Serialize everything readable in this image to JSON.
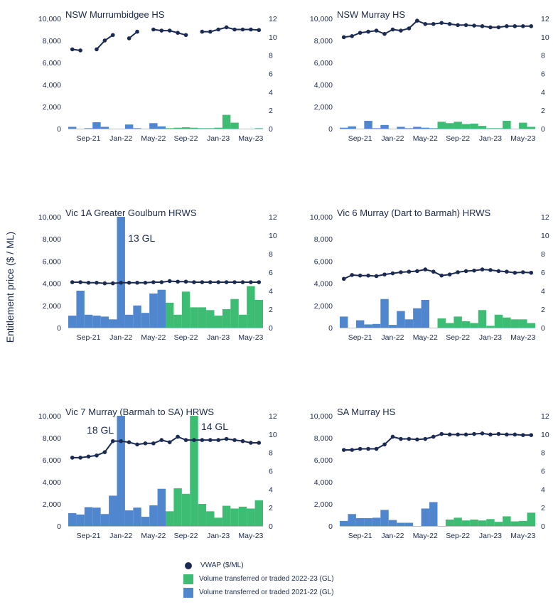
{
  "axis_label": "Entitlement price ($ / ML)",
  "colors": {
    "vwap": "#1a2a52",
    "vol_2223": "#3dbc73",
    "vol_2122": "#4f86cd",
    "axis": "#1b2a4a"
  },
  "legend": {
    "vwap": "VWAP ($/ML)",
    "vol_2223": "Volume transferred or traded 2022-23 (GL)",
    "vol_2122": "Volume transferred or traded 2021-22 (GL)"
  },
  "chart_data": [
    {
      "type": "bar+line",
      "title": "NSW Murrumbidgee HS",
      "months": [
        "Jul-21",
        "Aug-21",
        "Sep-21",
        "Oct-21",
        "Nov-21",
        "Dec-21",
        "Jan-22",
        "Feb-22",
        "Mar-22",
        "Apr-22",
        "May-22",
        "Jun-22",
        "Jul-22",
        "Aug-22",
        "Sep-22",
        "Oct-22",
        "Nov-22",
        "Dec-22",
        "Jan-23",
        "Feb-23",
        "Mar-23",
        "Apr-23",
        "May-23",
        "Jun-23"
      ],
      "x_ticks": [
        "Sep-21",
        "Jan-22",
        "May-22",
        "Sep-22",
        "Jan-23",
        "May-23"
      ],
      "y_left": {
        "lim": [
          0,
          10000
        ],
        "ticks": [
          "0",
          "2,000",
          "4,000",
          "6,000",
          "8,000",
          "10,000"
        ]
      },
      "y_right": {
        "lim": [
          0,
          12
        ],
        "ticks": [
          "0",
          "2",
          "4",
          "6",
          "8",
          "10",
          "12"
        ]
      },
      "vwap": [
        7200,
        7100,
        null,
        7200,
        8000,
        8500,
        null,
        8200,
        8800,
        null,
        9000,
        8900,
        8900,
        8700,
        8500,
        null,
        8800,
        8800,
        9000,
        9200,
        9000,
        9000,
        9000,
        8950
      ],
      "volume_2021_22": [
        0.2,
        0.0,
        0.05,
        0.7,
        0.2,
        0.0,
        0.0,
        0.45,
        0.05,
        0.0,
        0.6,
        0.25
      ],
      "volume_2022_23": [
        0.05,
        0.1,
        0.15,
        0.1,
        0.05,
        0.05,
        0.1,
        1.5,
        0.65,
        0.0,
        0.0,
        0.05
      ],
      "annotations": []
    },
    {
      "type": "bar+line",
      "title": "NSW Murray HS",
      "months": [
        "Jul-21",
        "Aug-21",
        "Sep-21",
        "Oct-21",
        "Nov-21",
        "Dec-21",
        "Jan-22",
        "Feb-22",
        "Mar-22",
        "Apr-22",
        "May-22",
        "Jun-22",
        "Jul-22",
        "Aug-22",
        "Sep-22",
        "Oct-22",
        "Nov-22",
        "Dec-22",
        "Jan-23",
        "Feb-23",
        "Mar-23",
        "Apr-23",
        "May-23",
        "Jun-23"
      ],
      "x_ticks": [
        "Sep-21",
        "Jan-22",
        "May-22",
        "Sep-22",
        "Jan-23",
        "May-23"
      ],
      "y_left": {
        "lim": [
          0,
          10000
        ],
        "ticks": [
          "0",
          "2,000",
          "4,000",
          "6,000",
          "8,000",
          "10,000"
        ]
      },
      "y_right": {
        "lim": [
          0,
          12
        ],
        "ticks": [
          "0",
          "2",
          "4",
          "6",
          "8",
          "10",
          "12"
        ]
      },
      "vwap": [
        8300,
        8400,
        8700,
        8800,
        8900,
        8600,
        9000,
        8900,
        9100,
        9800,
        9500,
        9500,
        9600,
        9500,
        9400,
        9400,
        9350,
        9300,
        9200,
        9200,
        9300,
        9300,
        9300,
        9300
      ],
      "volume_2021_22": [
        0.1,
        0.25,
        0.0,
        0.85,
        0.05,
        0.4,
        0.0,
        0.2,
        0.05,
        0.2,
        0.1,
        0.05
      ],
      "volume_2022_23": [
        0.75,
        0.6,
        0.75,
        0.5,
        0.55,
        0.3,
        0.05,
        0.05,
        0.85,
        0.0,
        0.65,
        0.2
      ],
      "annotations": []
    },
    {
      "type": "bar+line",
      "title": "Vic 1A Greater Goulburn HRWS",
      "months": [
        "Jul-21",
        "Aug-21",
        "Sep-21",
        "Oct-21",
        "Nov-21",
        "Dec-21",
        "Jan-22",
        "Feb-22",
        "Mar-22",
        "Apr-22",
        "May-22",
        "Jun-22",
        "Jul-22",
        "Aug-22",
        "Sep-22",
        "Oct-22",
        "Nov-22",
        "Dec-22",
        "Jan-23",
        "Feb-23",
        "Mar-23",
        "Apr-23",
        "May-23",
        "Jun-23"
      ],
      "x_ticks": [
        "Sep-21",
        "Jan-22",
        "May-22",
        "Sep-22",
        "Jan-23",
        "May-23"
      ],
      "y_left": {
        "lim": [
          0,
          10000
        ],
        "ticks": [
          "0",
          "2,000",
          "4,000",
          "6,000",
          "8,000",
          "10,000"
        ]
      },
      "y_right": {
        "lim": [
          0,
          12
        ],
        "ticks": [
          "0",
          "2",
          "4",
          "6",
          "8",
          "10",
          "12"
        ]
      },
      "vwap": [
        4100,
        4100,
        4050,
        4050,
        4000,
        4000,
        4050,
        4050,
        4050,
        4050,
        4100,
        4100,
        4200,
        4150,
        4150,
        4100,
        4100,
        4100,
        4100,
        4100,
        4100,
        4100,
        4100,
        4100
      ],
      "volume_2021_22": [
        1.3,
        4.0,
        1.4,
        1.3,
        1.2,
        0.9,
        13,
        1.4,
        2.4,
        1.6,
        3.7,
        4.1
      ],
      "volume_2022_23": [
        2.7,
        1.4,
        3.9,
        2.2,
        2.2,
        1.9,
        1.3,
        2.0,
        3.1,
        1.4,
        4.5,
        3.0
      ],
      "annotations": [
        {
          "month": "Jan-22",
          "text": "13 GL"
        }
      ]
    },
    {
      "type": "bar+line",
      "title": "Vic 6 Murray (Dart to Barmah) HRWS",
      "months": [
        "Jul-21",
        "Aug-21",
        "Sep-21",
        "Oct-21",
        "Nov-21",
        "Dec-21",
        "Jan-22",
        "Feb-22",
        "Mar-22",
        "Apr-22",
        "May-22",
        "Jun-22",
        "Jul-22",
        "Aug-22",
        "Sep-22",
        "Oct-22",
        "Nov-22",
        "Dec-22",
        "Jan-23",
        "Feb-23",
        "Mar-23",
        "Apr-23",
        "May-23",
        "Jun-23"
      ],
      "x_ticks": [
        "Sep-21",
        "Jan-22",
        "May-22",
        "Sep-22",
        "Jan-23",
        "May-23"
      ],
      "y_left": {
        "lim": [
          0,
          10000
        ],
        "ticks": [
          "0",
          "2,000",
          "4,000",
          "6,000",
          "8,000",
          "10,000"
        ]
      },
      "y_right": {
        "lim": [
          0,
          12
        ],
        "ticks": [
          "0",
          "2",
          "4",
          "6",
          "8",
          "10",
          "12"
        ]
      },
      "vwap": [
        4400,
        4750,
        4700,
        4700,
        4650,
        4800,
        4900,
        5000,
        5050,
        5100,
        5250,
        5050,
        4700,
        4800,
        5000,
        5100,
        5150,
        5250,
        5200,
        5100,
        5050,
        4950,
        5000,
        4950
      ],
      "volume_2021_22": [
        1.2,
        0.0,
        0.8,
        0.35,
        0.4,
        3.1,
        0.3,
        1.8,
        0.9,
        2.1,
        3.0,
        0.0
      ],
      "volume_2022_23": [
        1.0,
        0.5,
        1.2,
        0.7,
        0.5,
        1.9,
        0.2,
        1.4,
        1.1,
        0.9,
        0.9,
        0.5
      ],
      "annotations": []
    },
    {
      "type": "bar+line",
      "title": "Vic 7 Murray (Barmah to SA) HRWS",
      "months": [
        "Jul-21",
        "Aug-21",
        "Sep-21",
        "Oct-21",
        "Nov-21",
        "Dec-21",
        "Jan-22",
        "Feb-22",
        "Mar-22",
        "Apr-22",
        "May-22",
        "Jun-22",
        "Jul-22",
        "Aug-22",
        "Sep-22",
        "Oct-22",
        "Nov-22",
        "Dec-22",
        "Jan-23",
        "Feb-23",
        "Mar-23",
        "Apr-23",
        "May-23",
        "Jun-23"
      ],
      "x_ticks": [
        "Sep-21",
        "Jan-22",
        "May-22",
        "Sep-22",
        "Jan-23",
        "May-23"
      ],
      "y_left": {
        "lim": [
          0,
          10000
        ],
        "ticks": [
          "0",
          "2,000",
          "4,000",
          "6,000",
          "8,000",
          "10,000"
        ]
      },
      "y_right": {
        "lim": [
          0,
          12
        ],
        "ticks": [
          "0",
          "2",
          "4",
          "6",
          "8",
          "10",
          "12"
        ]
      },
      "vwap": [
        6200,
        6200,
        6300,
        6400,
        6700,
        7700,
        7700,
        7600,
        7400,
        7500,
        7500,
        7800,
        7600,
        8100,
        7800,
        7800,
        7800,
        7800,
        7800,
        7900,
        7800,
        7700,
        7550,
        7550
      ],
      "volume_2021_22": [
        1.4,
        1.25,
        2.05,
        2.0,
        1.3,
        3.3,
        18,
        1.7,
        2.0,
        1.0,
        2.25,
        4.05
      ],
      "volume_2022_23": [
        1.6,
        4.1,
        3.5,
        14,
        2.4,
        1.6,
        0.9,
        2.2,
        1.9,
        2.1,
        1.9,
        2.8
      ],
      "annotations": [
        {
          "month": "Jan-22",
          "text": "18 GL"
        },
        {
          "month": "Oct-22",
          "text": "14 GL"
        }
      ]
    },
    {
      "type": "bar+line",
      "title": "SA Murray HS",
      "months": [
        "Jul-21",
        "Aug-21",
        "Sep-21",
        "Oct-21",
        "Nov-21",
        "Dec-21",
        "Jan-22",
        "Feb-22",
        "Mar-22",
        "Apr-22",
        "May-22",
        "Jun-22",
        "Jul-22",
        "Aug-22",
        "Sep-22",
        "Oct-22",
        "Nov-22",
        "Dec-22",
        "Jan-23",
        "Feb-23",
        "Mar-23",
        "Apr-23",
        "May-23",
        "Jun-23"
      ],
      "x_ticks": [
        "Sep-21",
        "Jan-22",
        "May-22",
        "Sep-22",
        "Jan-23",
        "May-23"
      ],
      "y_left": {
        "lim": [
          0,
          10000
        ],
        "ticks": [
          "0",
          "2,000",
          "4,000",
          "6,000",
          "8,000",
          "10,000"
        ]
      },
      "y_right": {
        "lim": [
          0,
          12
        ],
        "ticks": [
          "0",
          "2",
          "4",
          "6",
          "8",
          "10",
          "12"
        ]
      },
      "vwap": [
        6900,
        6900,
        7000,
        7000,
        7000,
        7400,
        8100,
        7900,
        7900,
        7850,
        7900,
        8100,
        8350,
        8300,
        8300,
        8300,
        8350,
        8400,
        8300,
        8350,
        8300,
        8300,
        8250,
        8250
      ],
      "volume_2021_22": [
        0.55,
        1.3,
        0.85,
        0.85,
        0.9,
        1.75,
        0.65,
        0.35,
        0.35,
        0.0,
        1.9,
        2.6
      ],
      "volume_2022_23": [
        0.0,
        0.7,
        0.9,
        0.6,
        0.7,
        0.6,
        0.75,
        0.45,
        1.05,
        0.5,
        0.55,
        1.45
      ],
      "annotations": []
    }
  ]
}
